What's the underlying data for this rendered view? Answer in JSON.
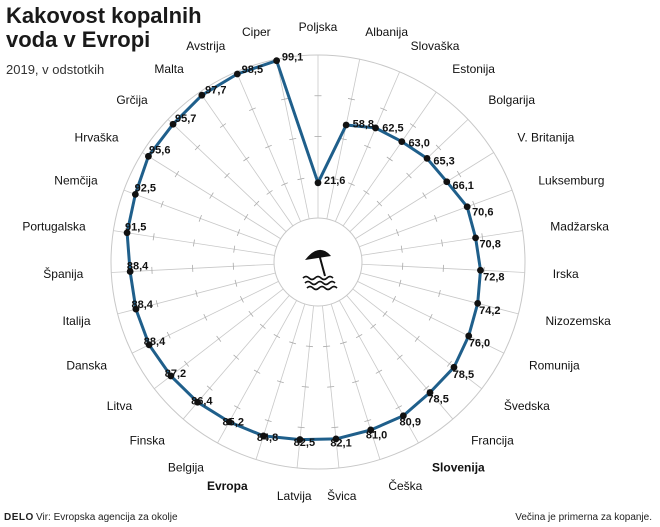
{
  "header": {
    "title": "Kakovost kopalnih voda v Evropi",
    "subtitle": "2019, v odstotkih"
  },
  "footer": {
    "logo": "DELO",
    "source": "Vir: Evropska agencija za okolje",
    "note": "Večina je primerna za kopanje."
  },
  "colors": {
    "line": "#1f5f8b",
    "dot": "#111111",
    "grid": "#c8c8c8",
    "text": "#111111"
  },
  "icons": {
    "center": "beach-umbrella-icon"
  },
  "chart_data": {
    "type": "radar",
    "title": "Kakovost kopalnih voda v Evropi",
    "subtitle": "2019, v odstotkih",
    "rlim": [
      0,
      100
    ],
    "highlighted": [
      "Slovenija",
      "Evropa"
    ],
    "categories": [
      "Poljska",
      "Albanija",
      "Slovaška",
      "Estonija",
      "Bolgarija",
      "V. Britanija",
      "Luksemburg",
      "Madžarska",
      "Irska",
      "Nizozemska",
      "Romunija",
      "Švedska",
      "Francija",
      "Slovenija",
      "Češka",
      "Švica",
      "Latvija",
      "Evropa",
      "Belgija",
      "Finska",
      "Litva",
      "Danska",
      "Italija",
      "Španija",
      "Portugalska",
      "Nemčija",
      "Hrvaška",
      "Grčija",
      "Malta",
      "Avstrija",
      "Ciper"
    ],
    "values": [
      21.6,
      58.8,
      62.5,
      63.0,
      65.3,
      66.1,
      70.6,
      70.8,
      72.8,
      74.2,
      76.0,
      78.5,
      78.5,
      80.9,
      81.0,
      82.1,
      82.5,
      84.8,
      85.2,
      86.4,
      87.2,
      88.4,
      88.4,
      88.4,
      91.5,
      92.5,
      95.6,
      95.7,
      97.7,
      98.5,
      99.1
    ],
    "value_labels": [
      "21,6",
      "58,8",
      "62,5",
      "63,0",
      "65,3",
      "66,1",
      "70,6",
      "70,8",
      "72,8",
      "74,2",
      "76,0",
      "78,5",
      "78,5",
      "80,9",
      "81,0",
      "82,1",
      "82,5",
      "84,8",
      "85,2",
      "86,4",
      "87,2",
      "88,4",
      "88,4",
      "88,4",
      "91,5",
      "92,5",
      "95,6",
      "95,7",
      "97,7",
      "98,5",
      "99,1"
    ]
  }
}
